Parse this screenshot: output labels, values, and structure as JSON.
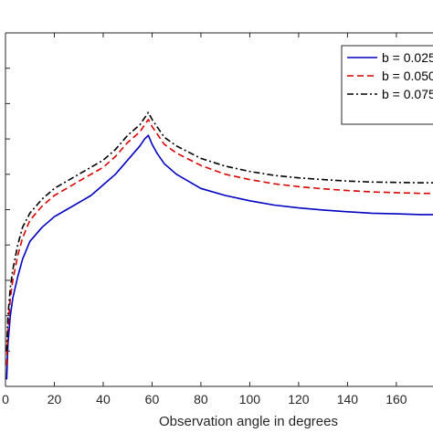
{
  "chart_data": {
    "type": "line",
    "xlabel": "Observation angle in degrees",
    "ylabel": "",
    "title": "",
    "xlim": [
      0,
      175
    ],
    "ylim": [
      0,
      1
    ],
    "x_ticks": [
      0,
      20,
      40,
      60,
      80,
      100,
      120,
      140,
      160
    ],
    "x_tick_labels": [
      "0",
      "20",
      "40",
      "60",
      "80",
      "100",
      "120",
      "140",
      "160"
    ],
    "y_ticks": [
      0.1,
      0.2,
      0.3,
      0.4,
      0.5,
      0.6,
      0.7,
      0.8,
      0.9
    ],
    "y_tick_labels_visible": false,
    "grid": false,
    "legend_position": "top-right",
    "series": [
      {
        "name": "b = 0.025",
        "color": "#0000bf",
        "style": "solid",
        "x": [
          0.5,
          1,
          2,
          3,
          5,
          7,
          10,
          15,
          20,
          25,
          30,
          35,
          40,
          45,
          50,
          55,
          57,
          58.5,
          60,
          62,
          65,
          70,
          80,
          90,
          100,
          110,
          120,
          130,
          140,
          150,
          160,
          170,
          175
        ],
        "y": [
          0.02,
          0.12,
          0.2,
          0.25,
          0.31,
          0.36,
          0.41,
          0.45,
          0.48,
          0.5,
          0.52,
          0.54,
          0.57,
          0.6,
          0.64,
          0.68,
          0.7,
          0.71,
          0.685,
          0.66,
          0.63,
          0.6,
          0.56,
          0.54,
          0.525,
          0.513,
          0.505,
          0.499,
          0.494,
          0.49,
          0.488,
          0.486,
          0.486
        ]
      },
      {
        "name": "b = 0.050",
        "color": "#d90000",
        "style": "dashed",
        "x": [
          0.5,
          1,
          2,
          3,
          5,
          7,
          10,
          15,
          20,
          25,
          30,
          35,
          40,
          45,
          50,
          55,
          57,
          58.5,
          60,
          62,
          65,
          70,
          80,
          90,
          100,
          110,
          120,
          130,
          140,
          150,
          160,
          170,
          175
        ],
        "y": [
          0.06,
          0.16,
          0.25,
          0.3,
          0.37,
          0.42,
          0.47,
          0.51,
          0.54,
          0.56,
          0.58,
          0.6,
          0.62,
          0.65,
          0.69,
          0.72,
          0.74,
          0.755,
          0.735,
          0.715,
          0.685,
          0.66,
          0.625,
          0.6,
          0.585,
          0.573,
          0.565,
          0.559,
          0.554,
          0.55,
          0.548,
          0.546,
          0.546
        ]
      },
      {
        "name": "b = 0.075",
        "color": "#000000",
        "style": "dashdot",
        "x": [
          0.5,
          1,
          2,
          3,
          5,
          7,
          10,
          15,
          20,
          25,
          30,
          35,
          40,
          45,
          50,
          55,
          57,
          58.5,
          60,
          62,
          65,
          70,
          80,
          90,
          100,
          110,
          120,
          130,
          140,
          150,
          160,
          170,
          175
        ],
        "y": [
          0.1,
          0.2,
          0.28,
          0.33,
          0.4,
          0.45,
          0.49,
          0.53,
          0.56,
          0.58,
          0.6,
          0.62,
          0.64,
          0.67,
          0.71,
          0.74,
          0.76,
          0.775,
          0.755,
          0.735,
          0.705,
          0.68,
          0.645,
          0.623,
          0.608,
          0.597,
          0.59,
          0.585,
          0.581,
          0.578,
          0.577,
          0.576,
          0.576
        ]
      }
    ]
  }
}
